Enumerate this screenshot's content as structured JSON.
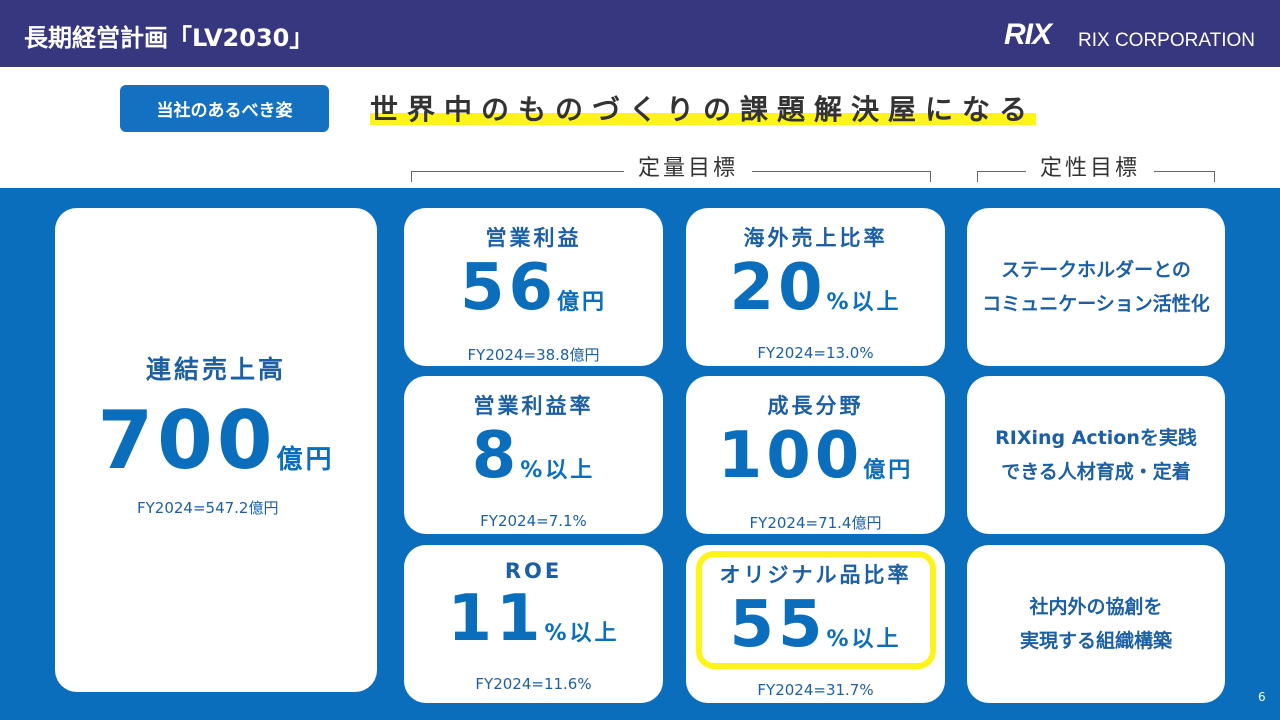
{
  "header": {
    "title": "長期経営計画「LV2030」",
    "logo": "RIX",
    "company": "RIX CORPORATION"
  },
  "vision": {
    "badge": "当社のあるべき姿",
    "headline": "世界中のものづくりの課題解決屋になる"
  },
  "sections": {
    "quantitative": "定量目標",
    "qualitative": "定性目標"
  },
  "main": {
    "title": "連結売上高",
    "value": "700",
    "unit": "億円",
    "fy": "FY2024=547.2億円"
  },
  "quant": [
    {
      "title": "営業利益",
      "value": "56",
      "unit": "億円",
      "fy": "FY2024=38.8億円"
    },
    {
      "title": "海外売上比率",
      "value": "20",
      "unit": "%以上",
      "fy": "FY2024=13.0%"
    },
    {
      "title": "営業利益率",
      "value": "8",
      "unit": "%以上",
      "fy": "FY2024=7.1%"
    },
    {
      "title": "成長分野",
      "value": "100",
      "unit": "億円",
      "fy": "FY2024=71.4億円"
    },
    {
      "title": "ROE",
      "value": "11",
      "unit": "%以上",
      "fy": "FY2024=11.6%"
    },
    {
      "title": "オリジナル品比率",
      "value": "55",
      "unit": "%以上",
      "fy": "FY2024=31.7%"
    }
  ],
  "qual": [
    {
      "line1": "ステークホルダーとの",
      "line2": "コミュニケーション活性化"
    },
    {
      "line1": "RIXing Actionを実践",
      "line2": "できる人材育成・定着"
    },
    {
      "line1": "社内外の協創を",
      "line2": "実現する組織構築"
    }
  ],
  "colors": {
    "header": "#37377f",
    "blue": "#0a6ebd",
    "highlight": "#fff31c"
  },
  "page_number": "6"
}
